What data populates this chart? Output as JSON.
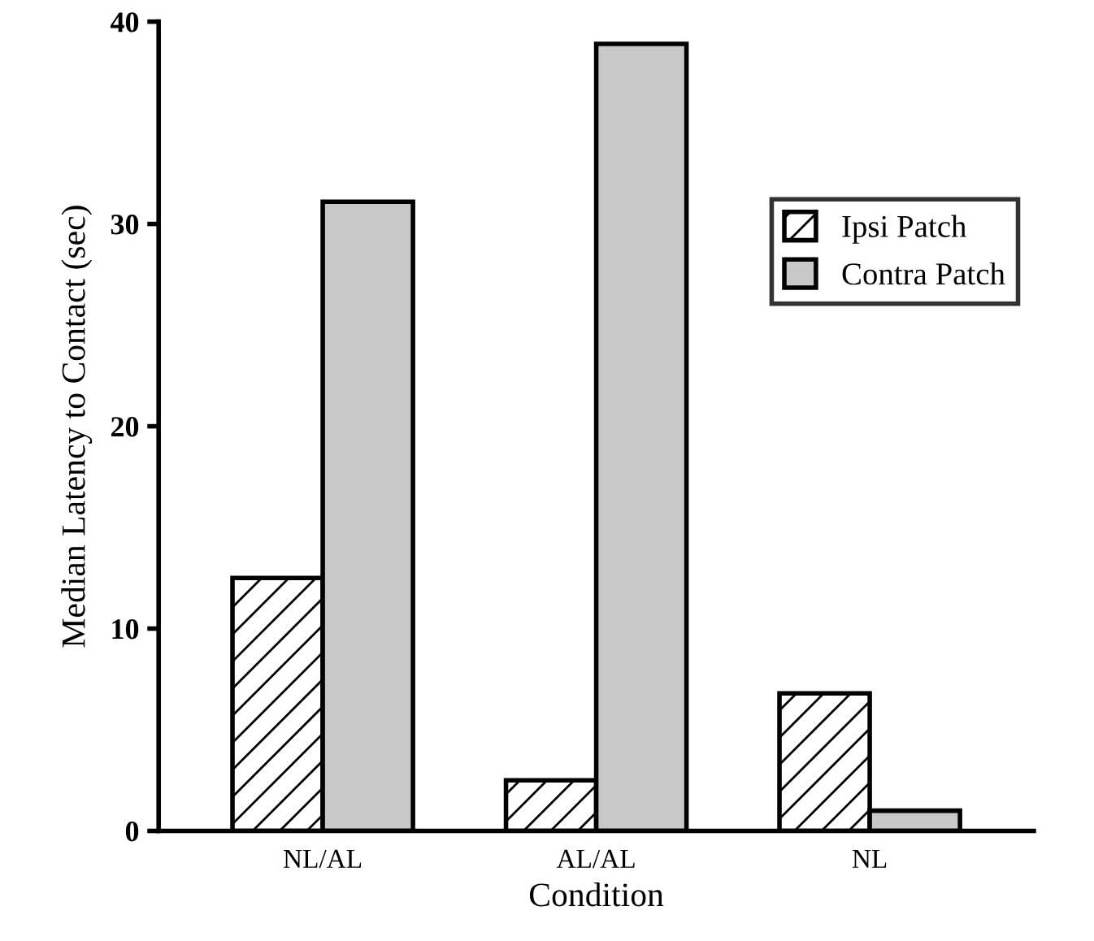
{
  "chart_data": {
    "type": "bar",
    "xlabel": "Condition",
    "ylabel": "Median Latency to Contact (sec)",
    "categories": [
      "NL/AL",
      "AL/AL",
      "NL"
    ],
    "series": [
      {
        "name": "Ipsi Patch",
        "color": "#000000",
        "values": [
          12.5,
          2.5,
          6.8
        ]
      },
      {
        "name": "Contra Patch",
        "color": "#c8c8c8",
        "values": [
          31.1,
          38.9,
          1.0
        ]
      }
    ],
    "ylim": [
      0,
      40
    ],
    "yticks": [
      0,
      10,
      20,
      30,
      40
    ],
    "grid": false,
    "legend": "top right"
  }
}
